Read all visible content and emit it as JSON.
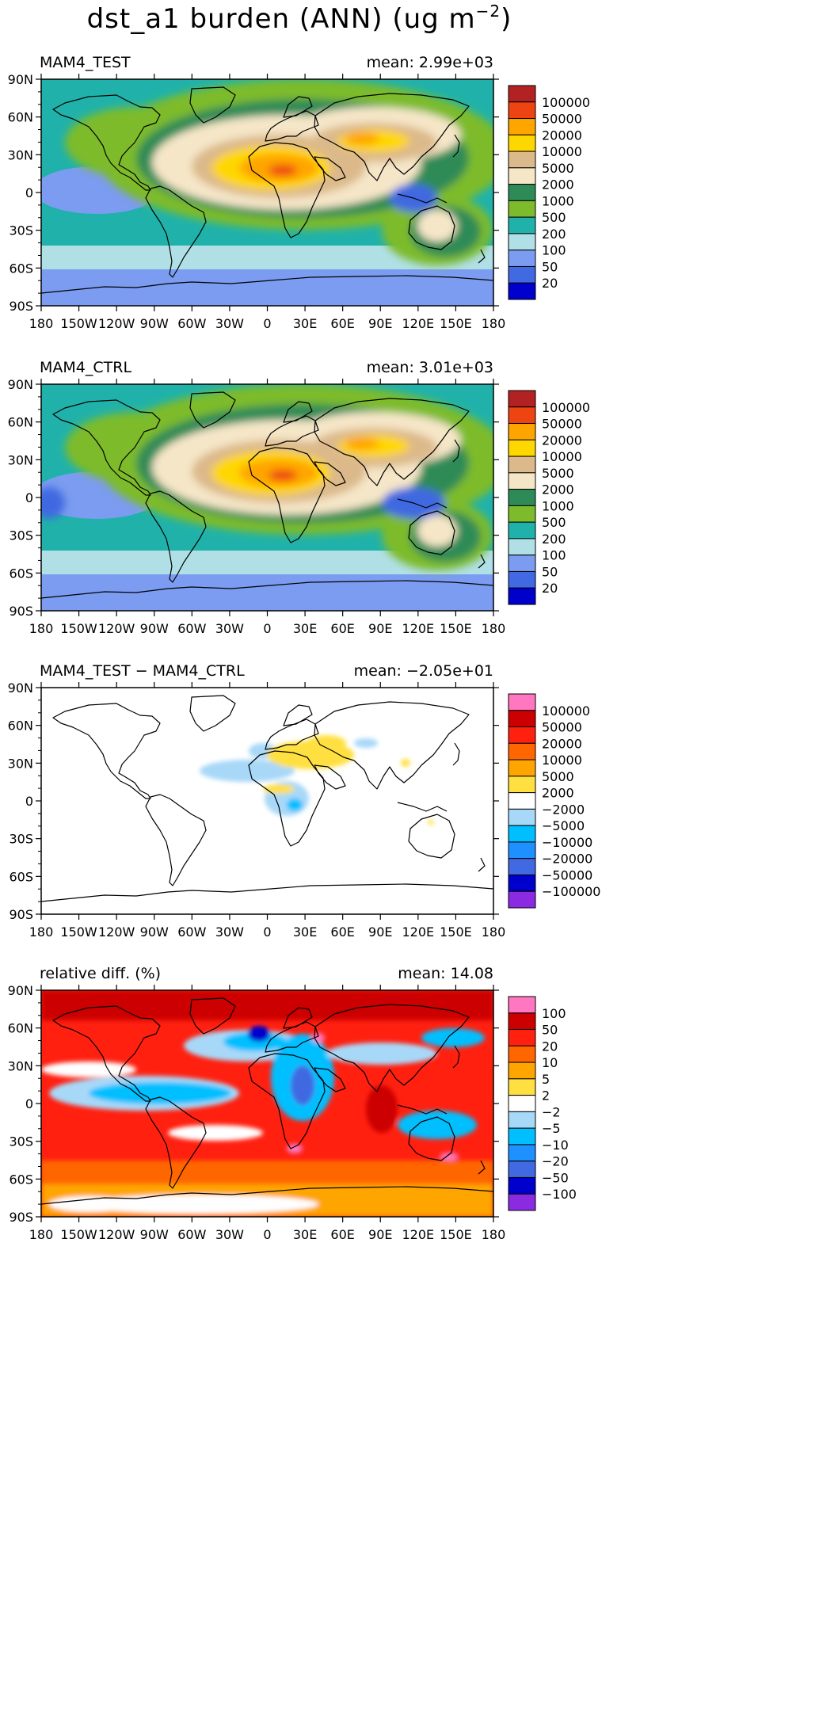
{
  "figure": {
    "title": "dst_a1 burden (ANN) (ug m",
    "title_superscript": "−2",
    "title_close": ")"
  },
  "lat_ticks": [
    "90N",
    "60N",
    "30N",
    "0",
    "30S",
    "60S",
    "90S"
  ],
  "lon_ticks": [
    "180",
    "150W",
    "120W",
    "90W",
    "60W",
    "30W",
    "0",
    "30E",
    "60E",
    "90E",
    "120E",
    "150E",
    "180"
  ],
  "panels": [
    {
      "name": "MAM4_TEST",
      "label": "MAM4_TEST",
      "mean_text": "mean: 2.99e+03",
      "type": "burden",
      "colorbar": {
        "labels": [
          "100000",
          "50000",
          "20000",
          "10000",
          "5000",
          "2000",
          "1000",
          "500",
          "200",
          "100",
          "50",
          "20"
        ],
        "colors": [
          "#b22222",
          "#ee4411",
          "#ffa500",
          "#ffd700",
          "#dcb98a",
          "#f5e6c8",
          "#2e8b57",
          "#7dbb2c",
          "#20b2aa",
          "#b0e0e6",
          "#7b9cf0",
          "#4169e1",
          "#0000cd"
        ]
      }
    },
    {
      "name": "MAM4_CTRL",
      "label": "MAM4_CTRL",
      "mean_text": "mean: 3.01e+03",
      "type": "burden",
      "colorbar": {
        "labels": [
          "100000",
          "50000",
          "20000",
          "10000",
          "5000",
          "2000",
          "1000",
          "500",
          "200",
          "100",
          "50",
          "20"
        ],
        "colors": [
          "#b22222",
          "#ee4411",
          "#ffa500",
          "#ffd700",
          "#dcb98a",
          "#f5e6c8",
          "#2e8b57",
          "#7dbb2c",
          "#20b2aa",
          "#b0e0e6",
          "#7b9cf0",
          "#4169e1",
          "#0000cd"
        ]
      }
    },
    {
      "name": "difference",
      "label": "MAM4_TEST − MAM4_CTRL",
      "mean_text": "mean: −2.05e+01",
      "type": "diff",
      "colorbar": {
        "labels": [
          "100000",
          "50000",
          "20000",
          "10000",
          "5000",
          "2000",
          "−2000",
          "−5000",
          "−10000",
          "−20000",
          "−50000",
          "−100000"
        ],
        "colors": [
          "#ff77c0",
          "#cc0000",
          "#ff2010",
          "#ff6600",
          "#ffa500",
          "#ffe040",
          "#ffffff",
          "#a8d8f8",
          "#00bfff",
          "#1e90ff",
          "#4169e1",
          "#0000cd",
          "#8a2be2"
        ]
      }
    },
    {
      "name": "relative-diff",
      "label": "relative diff. (%)",
      "mean_text": "mean: 14.08",
      "type": "rel",
      "colorbar": {
        "labels": [
          "100",
          "50",
          "20",
          "10",
          "5",
          "2",
          "−2",
          "−5",
          "−10",
          "−20",
          "−50",
          "−100"
        ],
        "colors": [
          "#ff77c0",
          "#cc0000",
          "#ff2010",
          "#ff6600",
          "#ffa500",
          "#ffe040",
          "#ffffff",
          "#a8d8f8",
          "#00bfff",
          "#1e90ff",
          "#4169e1",
          "#0000cd",
          "#8a2be2"
        ]
      }
    }
  ]
}
